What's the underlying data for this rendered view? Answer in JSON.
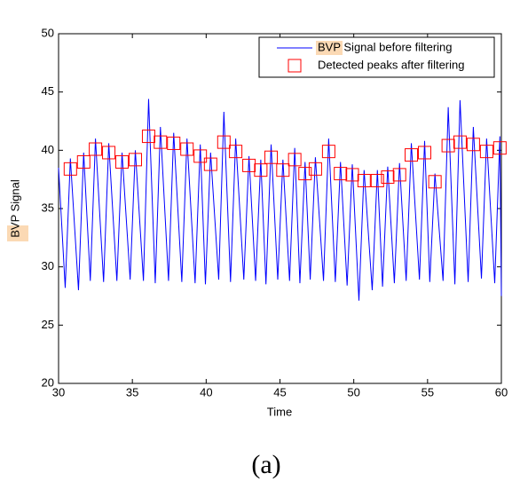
{
  "chart_data": {
    "type": "line",
    "xlabel": "Time",
    "ylabel": "BVP Signal",
    "caption": "(a)",
    "xlim": [
      30,
      60
    ],
    "xticks": [
      30,
      35,
      40,
      45,
      50,
      55,
      60
    ],
    "ylim": [
      20,
      50
    ],
    "yticks": [
      20,
      25,
      30,
      35,
      40,
      45,
      50
    ],
    "legend": "upper right",
    "series": [
      {
        "name": "BVP Signal before filtering",
        "color": "#0000ff",
        "style": "line",
        "x": [
          30.0,
          30.45,
          30.8,
          31.35,
          31.7,
          32.15,
          32.5,
          33.05,
          33.4,
          33.95,
          34.3,
          34.85,
          35.2,
          35.75,
          36.1,
          36.55,
          36.9,
          37.45,
          37.8,
          38.35,
          38.7,
          39.25,
          39.6,
          39.95,
          40.3,
          40.85,
          41.2,
          41.65,
          42.0,
          42.55,
          42.9,
          43.35,
          43.7,
          44.05,
          44.4,
          44.85,
          45.2,
          45.65,
          46.0,
          46.35,
          46.7,
          47.05,
          47.4,
          47.95,
          48.3,
          48.75,
          49.1,
          49.55,
          49.9,
          50.35,
          50.7,
          51.25,
          51.6,
          51.95,
          52.3,
          52.75,
          53.1,
          53.55,
          53.9,
          54.45,
          54.8,
          55.15,
          55.5,
          56.05,
          56.4,
          56.85,
          57.2,
          57.75,
          58.1,
          58.65,
          59.0,
          59.55,
          59.9,
          60.0
        ],
        "values": [
          38.5,
          28.2,
          39.3,
          28.0,
          39.8,
          28.8,
          41.0,
          28.7,
          40.6,
          28.8,
          39.8,
          28.9,
          40.0,
          28.8,
          44.4,
          28.6,
          42.0,
          28.8,
          41.5,
          28.7,
          41.0,
          28.6,
          40.5,
          28.5,
          39.8,
          28.9,
          43.3,
          28.7,
          41.0,
          28.9,
          39.5,
          28.8,
          39.2,
          28.5,
          40.5,
          28.9,
          39.2,
          28.8,
          40.2,
          28.6,
          39.0,
          28.9,
          39.4,
          28.8,
          41.0,
          28.7,
          39.0,
          28.4,
          38.8,
          27.1,
          38.3,
          28.0,
          38.3,
          28.3,
          38.6,
          28.6,
          38.9,
          28.8,
          40.6,
          28.9,
          40.8,
          28.7,
          38.0,
          28.8,
          43.7,
          28.5,
          44.3,
          28.7,
          42.0,
          29.0,
          41.0,
          28.6,
          41.2,
          27.5
        ]
      },
      {
        "name": "Detected peaks after filtering",
        "color": "#ff0000",
        "style": "square",
        "x": [
          30.8,
          31.7,
          32.5,
          33.4,
          34.3,
          35.2,
          36.1,
          36.9,
          37.8,
          38.7,
          39.6,
          40.3,
          41.2,
          42.0,
          42.9,
          43.7,
          44.4,
          45.2,
          46.0,
          46.7,
          47.4,
          48.3,
          49.1,
          49.9,
          50.7,
          51.6,
          52.3,
          53.1,
          53.9,
          54.8,
          55.5,
          56.4,
          57.2,
          58.1,
          59.0,
          59.9
        ],
        "values": [
          38.4,
          39.0,
          40.1,
          39.8,
          39.0,
          39.2,
          41.2,
          40.7,
          40.6,
          40.1,
          39.5,
          38.8,
          40.7,
          39.9,
          38.7,
          38.3,
          39.4,
          38.3,
          39.2,
          38.0,
          38.4,
          39.9,
          38.0,
          37.9,
          37.4,
          37.4,
          37.7,
          37.9,
          39.6,
          39.8,
          37.3,
          40.4,
          40.7,
          40.5,
          39.9,
          40.2
        ]
      }
    ]
  }
}
